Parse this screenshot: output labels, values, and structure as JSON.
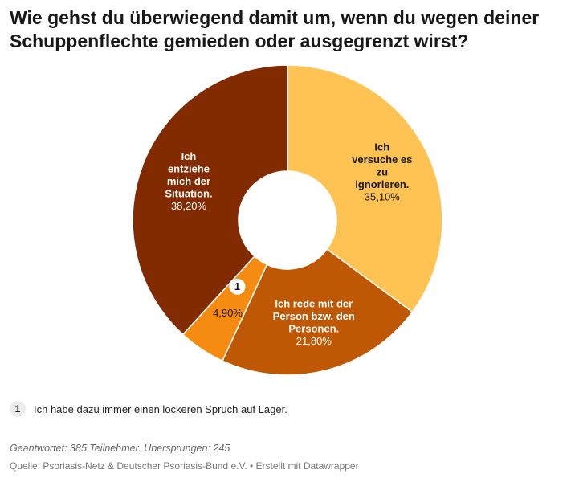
{
  "title": "Wie gehst du überwiegend damit um, wenn du wegen deiner\nSchuppenflechte gemieden oder ausgegrenzt wirst?",
  "chart_data": {
    "type": "pie",
    "variant": "donut",
    "title": "Wie gehst du überwiegend damit um, wenn du wegen deiner Schuppenflechte gemieden oder ausgegrenzt wirst?",
    "slices": [
      {
        "label": "Ich versuche es zu ignorieren.",
        "value": 35.1,
        "value_label": "35,10%",
        "color": "#fec352",
        "text_color": "#181818",
        "label_lines": [
          "Ich",
          "versuche es",
          "zu",
          "ignorieren."
        ]
      },
      {
        "label": "Ich rede mit der Person bzw. den Personen.",
        "value": 21.8,
        "value_label": "21,80%",
        "color": "#be5805",
        "text_color": "#ffffff",
        "label_lines": [
          "Ich rede mit der",
          "Person bzw. den",
          "Personen."
        ]
      },
      {
        "label": "Ich habe dazu immer einen lockeren Spruch auf Lager.",
        "value": 4.9,
        "value_label": "4,90%",
        "color": "#f68b12",
        "text_color": "#181818",
        "footnote_marker": "1",
        "label_lines": []
      },
      {
        "label": "Ich entziehe mich der Situation.",
        "value": 38.2,
        "value_label": "38,20%",
        "color": "#822a00",
        "text_color": "#ffffff",
        "label_lines": [
          "Ich",
          "entziehe",
          "mich der",
          "Situation."
        ]
      }
    ]
  },
  "footnote": {
    "marker": "1",
    "text": "Ich habe dazu immer einen lockeren Spruch auf Lager."
  },
  "answered_text": "Geantwortet: 385 Teilnehmer. Übersprungen: 245",
  "source_text": "Quelle: Psoriasis-Netz & Deutscher Psoriasis-Bund e.V. • Erstellt mit Datawrapper"
}
